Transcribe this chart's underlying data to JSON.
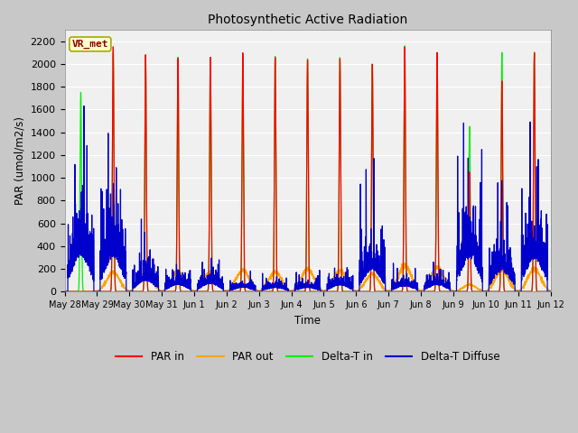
{
  "title": "Photosynthetic Active Radiation",
  "xlabel": "Time",
  "ylabel": "PAR (umol/m2/s)",
  "ylim": [
    0,
    2300
  ],
  "yticks": [
    0,
    200,
    400,
    600,
    800,
    1000,
    1200,
    1400,
    1600,
    1800,
    2000,
    2200
  ],
  "fig_bg": "#c8c8c8",
  "plot_bg": "#f0f0f0",
  "grid_color": "#ffffff",
  "legend_labels": [
    "PAR in",
    "PAR out",
    "Delta-T in",
    "Delta-T Diffuse"
  ],
  "line_colors": {
    "par_in": "#ff0000",
    "par_out": "#ffa500",
    "delta_t_in": "#00ee00",
    "delta_t_diff": "#0000cc"
  },
  "annotation_text": "VR_met",
  "annotation_color": "#8b0000",
  "annotation_bg": "#ffffcc",
  "annotation_edge": "#aaaa00",
  "n_days": 15,
  "day_labels": [
    "May 28",
    "May 29",
    "May 30",
    "May 31",
    "Jun 1",
    "Jun 2",
    "Jun 3",
    "Jun 4",
    "Jun 5",
    "Jun 6",
    "Jun 7",
    "Jun 8",
    "Jun 9",
    "Jun 10",
    "Jun 11",
    "Jun 12"
  ]
}
